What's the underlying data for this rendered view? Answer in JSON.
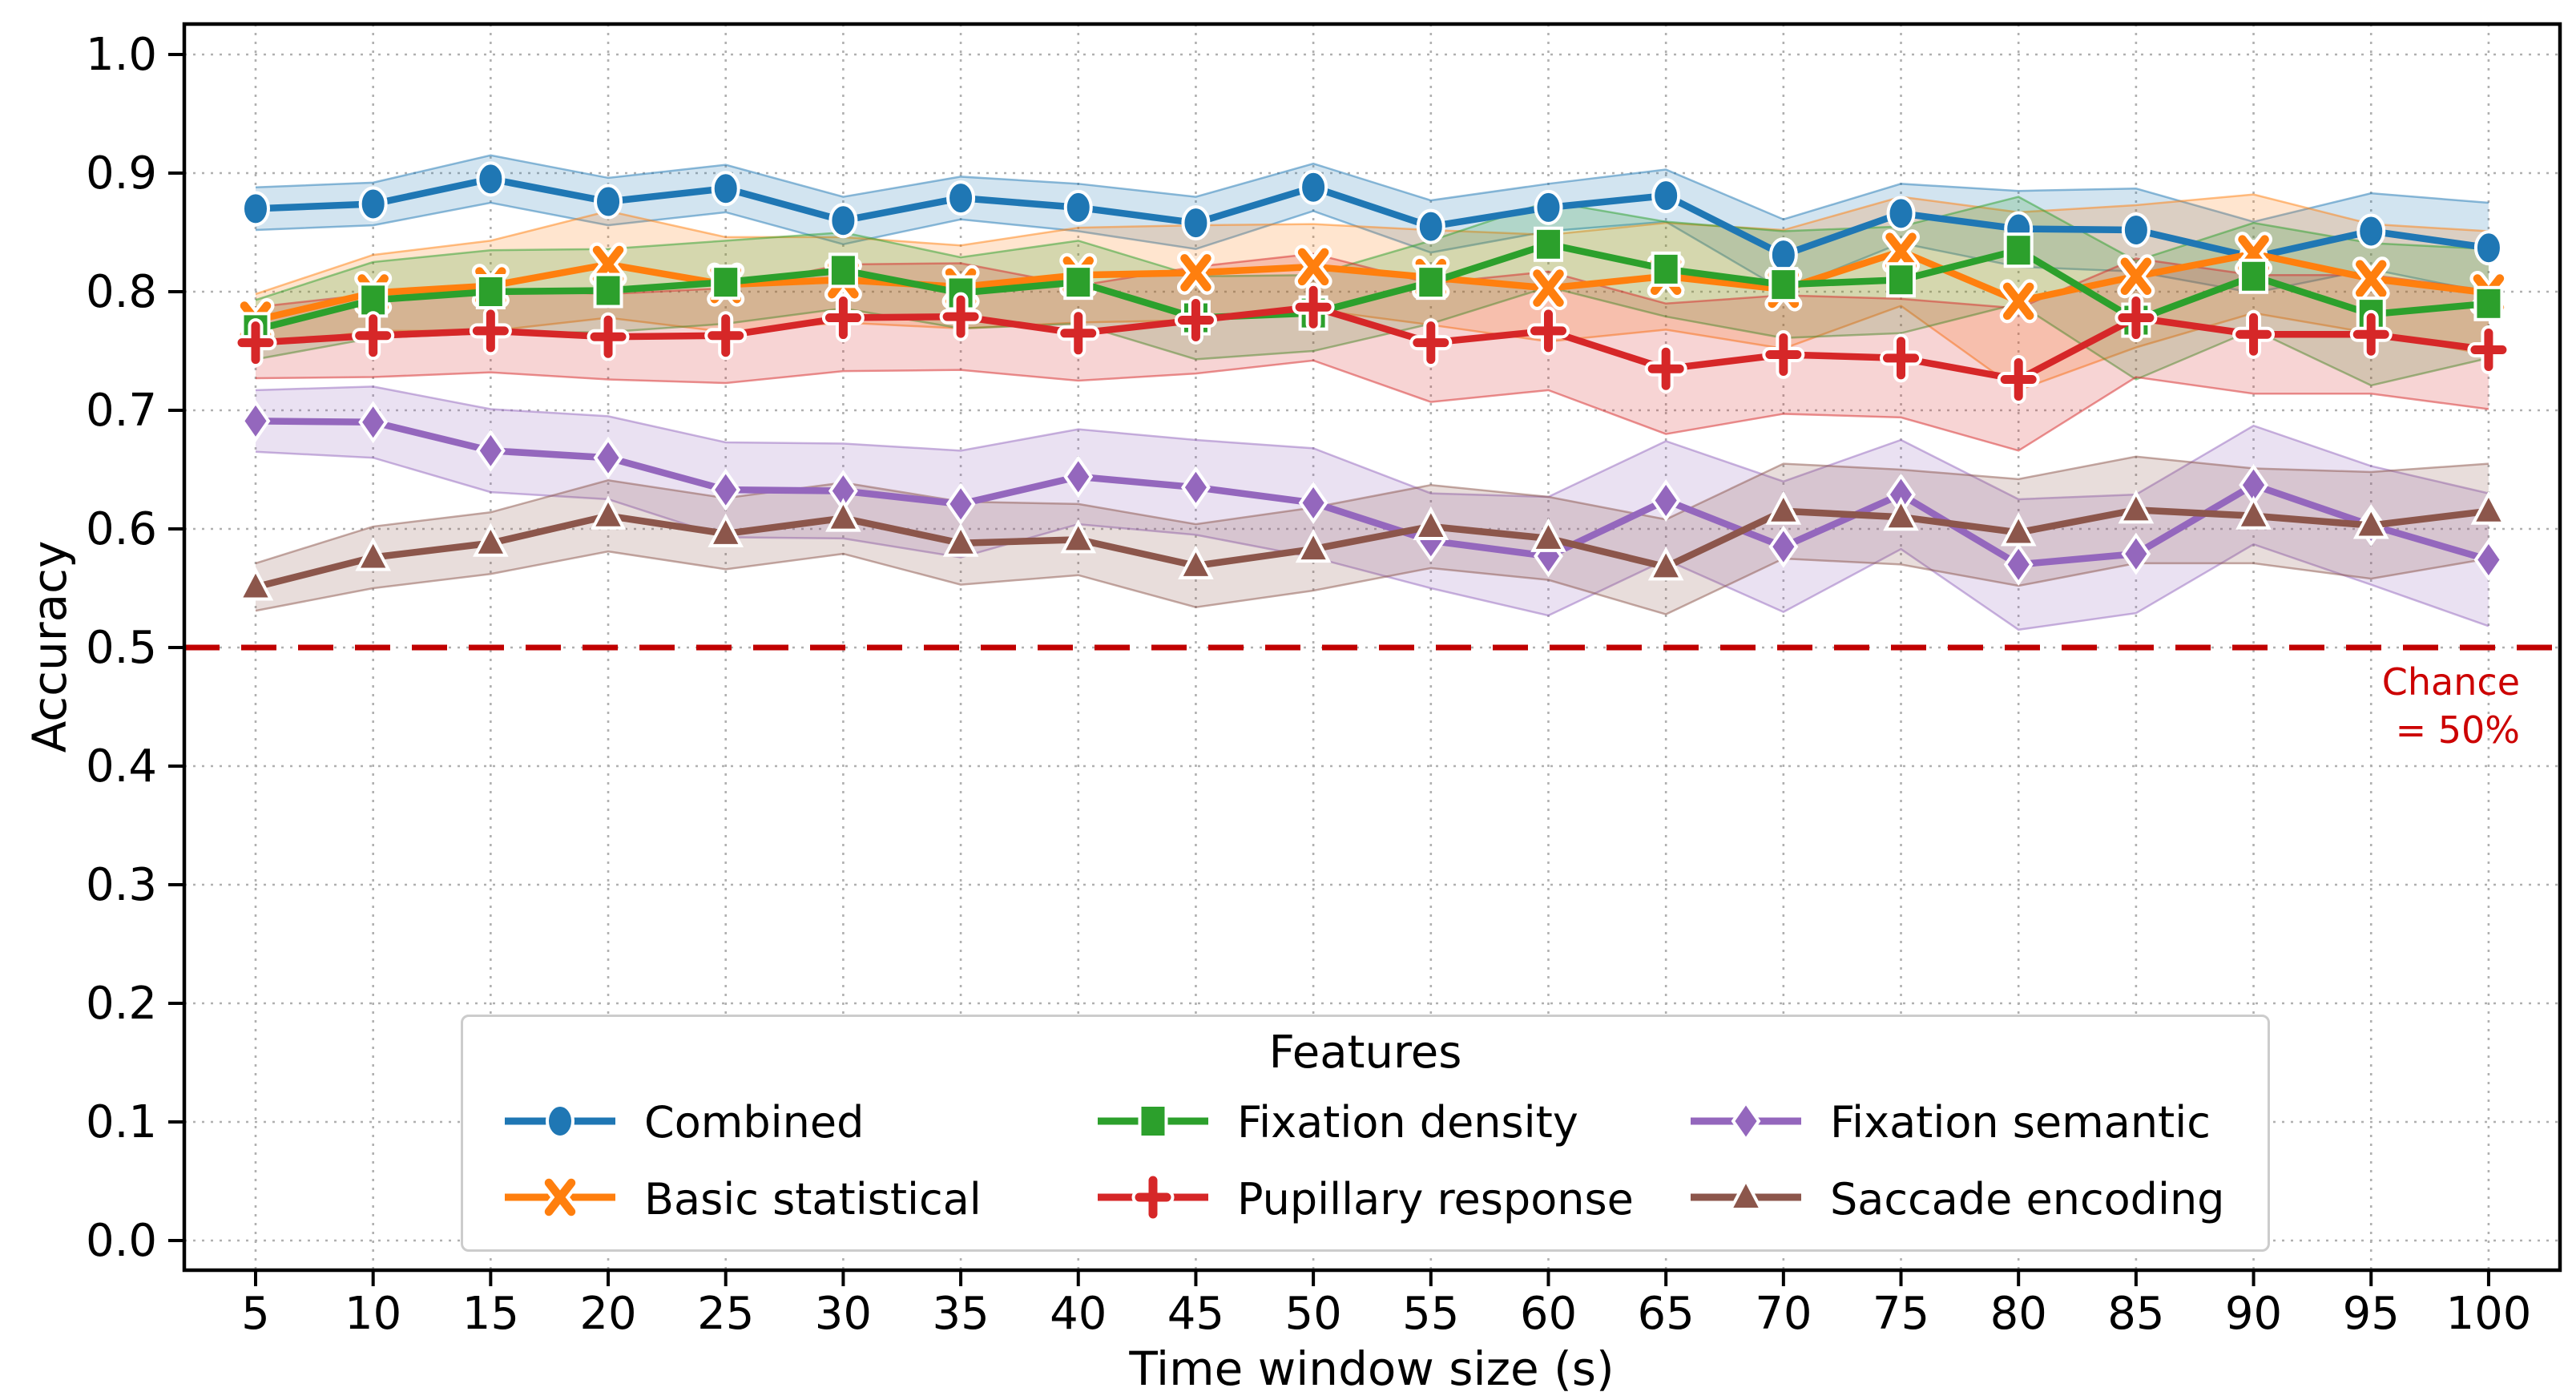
{
  "chart_data": {
    "type": "line",
    "xlabel": "Time window size (s)",
    "ylabel": "Accuracy",
    "legend_title": "Features",
    "legend_position": "lower center",
    "grid": true,
    "x": [
      5,
      10,
      15,
      20,
      25,
      30,
      35,
      40,
      45,
      50,
      55,
      60,
      65,
      70,
      75,
      80,
      85,
      90,
      95,
      100
    ],
    "x_tick_labels": [
      "5",
      "10",
      "15",
      "20",
      "25",
      "30",
      "35",
      "40",
      "45",
      "50",
      "55",
      "60",
      "65",
      "70",
      "75",
      "80",
      "85",
      "90",
      "95",
      "100"
    ],
    "y_ticks": [
      0.0,
      0.1,
      0.2,
      0.3,
      0.4,
      0.5,
      0.6,
      0.7,
      0.8,
      0.9,
      1.0
    ],
    "y_tick_labels": [
      "0.0",
      "0.1",
      "0.2",
      "0.3",
      "0.4",
      "0.5",
      "0.6",
      "0.7",
      "0.8",
      "0.9",
      "1.0"
    ],
    "ylim": [
      -0.026,
      1.026
    ],
    "chance_line": {
      "y": 0.5,
      "line_color": "#c00000",
      "text_color": "#cc0000",
      "label_lines": [
        "Chance",
        "= 50%"
      ]
    },
    "series": [
      {
        "name": "Combined",
        "marker": "circle",
        "color": "#1f77b4",
        "values": [
          0.87,
          0.874,
          0.895,
          0.876,
          0.887,
          0.86,
          0.879,
          0.871,
          0.858,
          0.888,
          0.855,
          0.871,
          0.881,
          0.831,
          0.866,
          0.853,
          0.852,
          0.829,
          0.851,
          0.837
        ],
        "band": [
          0.018,
          0.018,
          0.02,
          0.02,
          0.02,
          0.02,
          0.018,
          0.02,
          0.022,
          0.02,
          0.022,
          0.02,
          0.022,
          0.03,
          0.025,
          0.032,
          0.035,
          0.03,
          0.032,
          0.038
        ]
      },
      {
        "name": "Basic statistical",
        "marker": "x",
        "color": "#ff7f0e",
        "values": [
          0.776,
          0.799,
          0.805,
          0.823,
          0.806,
          0.81,
          0.804,
          0.814,
          0.816,
          0.821,
          0.812,
          0.803,
          0.813,
          0.802,
          0.834,
          0.792,
          0.813,
          0.832,
          0.811,
          0.799
        ],
        "band": [
          0.022,
          0.032,
          0.038,
          0.045,
          0.04,
          0.036,
          0.035,
          0.04,
          0.04,
          0.036,
          0.04,
          0.045,
          0.045,
          0.05,
          0.046,
          0.075,
          0.06,
          0.05,
          0.046,
          0.052
        ]
      },
      {
        "name": "Fixation density",
        "marker": "square",
        "color": "#2ca02c",
        "values": [
          0.768,
          0.793,
          0.8,
          0.801,
          0.808,
          0.818,
          0.799,
          0.808,
          0.778,
          0.782,
          0.808,
          0.84,
          0.819,
          0.806,
          0.81,
          0.835,
          0.776,
          0.813,
          0.781,
          0.79
        ],
        "band": [
          0.025,
          0.032,
          0.035,
          0.035,
          0.035,
          0.032,
          0.03,
          0.035,
          0.035,
          0.032,
          0.035,
          0.036,
          0.04,
          0.045,
          0.045,
          0.045,
          0.05,
          0.045,
          0.06,
          0.046
        ]
      },
      {
        "name": "Pupillary response",
        "marker": "plus",
        "color": "#d62728",
        "values": [
          0.757,
          0.763,
          0.767,
          0.762,
          0.763,
          0.778,
          0.779,
          0.765,
          0.776,
          0.787,
          0.757,
          0.767,
          0.735,
          0.747,
          0.744,
          0.726,
          0.778,
          0.764,
          0.764,
          0.751
        ],
        "band": [
          0.03,
          0.035,
          0.035,
          0.036,
          0.04,
          0.045,
          0.045,
          0.04,
          0.045,
          0.045,
          0.05,
          0.05,
          0.055,
          0.05,
          0.05,
          0.06,
          0.05,
          0.05,
          0.05,
          0.05
        ]
      },
      {
        "name": "Fixation semantic",
        "marker": "diamond",
        "color": "#9467bd",
        "values": [
          0.691,
          0.69,
          0.666,
          0.66,
          0.633,
          0.632,
          0.621,
          0.644,
          0.635,
          0.622,
          0.59,
          0.577,
          0.624,
          0.585,
          0.629,
          0.57,
          0.579,
          0.637,
          0.603,
          0.574
        ],
        "band": [
          0.026,
          0.03,
          0.035,
          0.035,
          0.04,
          0.04,
          0.045,
          0.04,
          0.04,
          0.046,
          0.04,
          0.05,
          0.05,
          0.055,
          0.046,
          0.055,
          0.05,
          0.05,
          0.05,
          0.056
        ]
      },
      {
        "name": "Saccade encoding",
        "marker": "triangle-up",
        "color": "#8c564b",
        "values": [
          0.551,
          0.576,
          0.588,
          0.611,
          0.596,
          0.609,
          0.588,
          0.591,
          0.569,
          0.583,
          0.602,
          0.592,
          0.568,
          0.615,
          0.61,
          0.597,
          0.616,
          0.611,
          0.603,
          0.615
        ],
        "band": [
          0.02,
          0.026,
          0.026,
          0.03,
          0.03,
          0.03,
          0.035,
          0.03,
          0.035,
          0.035,
          0.035,
          0.035,
          0.04,
          0.04,
          0.04,
          0.045,
          0.045,
          0.04,
          0.045,
          0.04
        ]
      }
    ]
  }
}
